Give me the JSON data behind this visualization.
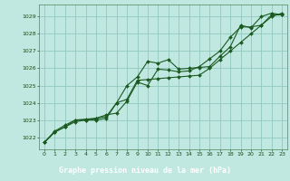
{
  "title": "Graphe pression niveau de la mer (hPa)",
  "bg_color": "#c0e8e0",
  "plot_bg_color": "#c0e8e0",
  "label_bg_color": "#2a6a3a",
  "grid_color": "#90c8be",
  "line_color": "#1a5a20",
  "xlim": [
    -0.5,
    23.5
  ],
  "ylim": [
    1021.3,
    1029.7
  ],
  "yticks": [
    1022,
    1023,
    1024,
    1025,
    1026,
    1027,
    1028,
    1029
  ],
  "xticks": [
    0,
    1,
    2,
    3,
    4,
    5,
    6,
    7,
    8,
    9,
    10,
    11,
    12,
    13,
    14,
    15,
    16,
    17,
    18,
    19,
    20,
    21,
    22,
    23
  ],
  "series1_x": [
    0,
    1,
    2,
    3,
    4,
    5,
    6,
    7,
    8,
    9,
    10,
    11,
    12,
    13,
    14,
    15,
    16,
    17,
    18,
    19,
    20,
    21,
    22,
    23
  ],
  "series1_y": [
    1021.7,
    1022.3,
    1022.6,
    1022.9,
    1023.0,
    1023.0,
    1023.1,
    1024.0,
    1025.0,
    1025.5,
    1026.4,
    1026.3,
    1026.5,
    1025.95,
    1026.0,
    1026.05,
    1026.1,
    1026.7,
    1027.25,
    1028.5,
    1028.35,
    1029.0,
    1029.2,
    1029.1
  ],
  "series2_x": [
    0,
    1,
    2,
    3,
    4,
    5,
    6,
    7,
    8,
    9,
    10,
    11,
    12,
    13,
    14,
    15,
    16,
    17,
    18,
    19,
    20,
    21,
    22,
    23
  ],
  "series2_y": [
    1021.7,
    1022.3,
    1022.6,
    1023.0,
    1023.0,
    1023.1,
    1023.3,
    1023.4,
    1024.1,
    1025.2,
    1025.0,
    1025.95,
    1025.9,
    1025.8,
    1025.85,
    1026.1,
    1026.55,
    1027.0,
    1027.8,
    1028.4,
    1028.4,
    1028.5,
    1029.1,
    1029.1
  ],
  "series3_x": [
    0,
    1,
    2,
    3,
    4,
    5,
    6,
    7,
    8,
    9,
    10,
    11,
    12,
    13,
    14,
    15,
    16,
    17,
    18,
    19,
    20,
    21,
    22,
    23
  ],
  "series3_y": [
    1021.7,
    1022.35,
    1022.7,
    1023.0,
    1023.05,
    1023.1,
    1023.2,
    1024.0,
    1024.2,
    1025.3,
    1025.35,
    1025.4,
    1025.45,
    1025.5,
    1025.55,
    1025.6,
    1026.0,
    1026.5,
    1027.0,
    1027.5,
    1028.0,
    1028.5,
    1029.0,
    1029.2
  ]
}
